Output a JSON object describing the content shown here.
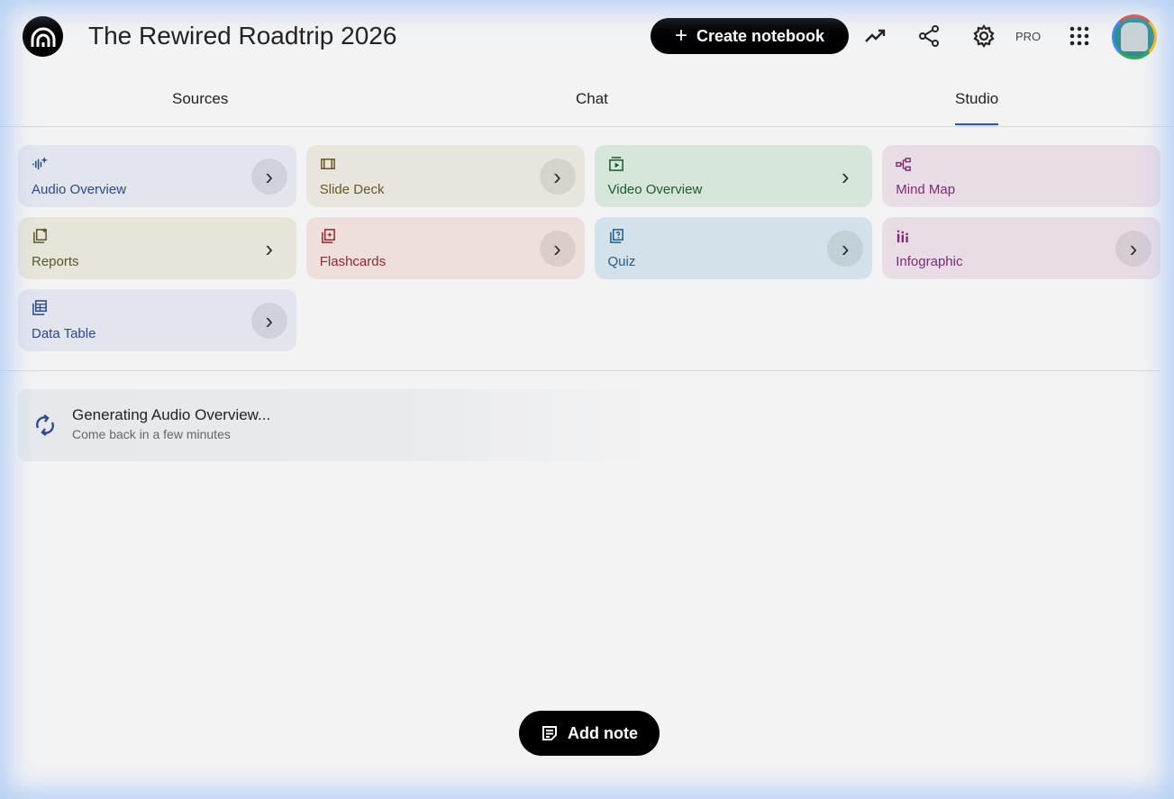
{
  "header": {
    "title": "The Rewired Roadtrip 2026",
    "create_label": "Create notebook",
    "pro_label": "PRO",
    "icons": [
      "notebooklm-logo-icon",
      "analytics-icon",
      "share-icon",
      "settings-icon",
      "apps-grid-icon",
      "avatar"
    ]
  },
  "tabs": [
    {
      "label": "Sources",
      "active": false
    },
    {
      "label": "Chat",
      "active": false
    },
    {
      "label": "Studio",
      "active": true
    }
  ],
  "studio": {
    "cards": [
      {
        "label": "Audio Overview",
        "icon": "audio-waveform-icon",
        "bg": "#e2e4ee",
        "color": "#2b4a8b",
        "chevron_bg": true
      },
      {
        "label": "Slide Deck",
        "icon": "slides-icon",
        "bg": "#e8e6dc",
        "color": "#6a5626",
        "chevron_bg": true
      },
      {
        "label": "Video Overview",
        "icon": "video-icon",
        "bg": "#d6e6da",
        "color": "#1d5a2f",
        "chevron_bg": false
      },
      {
        "label": "Mind Map",
        "icon": "mind-map-icon",
        "bg": "#e8dde5",
        "color": "#7e2a76",
        "chevron_bg": null
      },
      {
        "label": "Reports",
        "icon": "reports-icon",
        "bg": "#e7e5d9",
        "color": "#5d5527",
        "chevron_bg": false
      },
      {
        "label": "Flashcards",
        "icon": "flashcards-icon",
        "bg": "#eedfdc",
        "color": "#8e2b2b",
        "chevron_bg": true
      },
      {
        "label": "Quiz",
        "icon": "quiz-icon",
        "bg": "#d3e2ea",
        "color": "#1f5f89",
        "chevron_bg": true
      },
      {
        "label": "Infographic",
        "icon": "infographic-icon",
        "bg": "#e8dde5",
        "color": "#7e2a76",
        "chevron_bg": true
      },
      {
        "label": "Data Table",
        "icon": "data-table-icon",
        "bg": "#e2e4ee",
        "color": "#2b4a8b",
        "chevron_bg": true
      }
    ],
    "generating": {
      "title": "Generating Audio Overview...",
      "subtitle": "Come back in a few minutes"
    }
  },
  "add_note_label": "Add note"
}
